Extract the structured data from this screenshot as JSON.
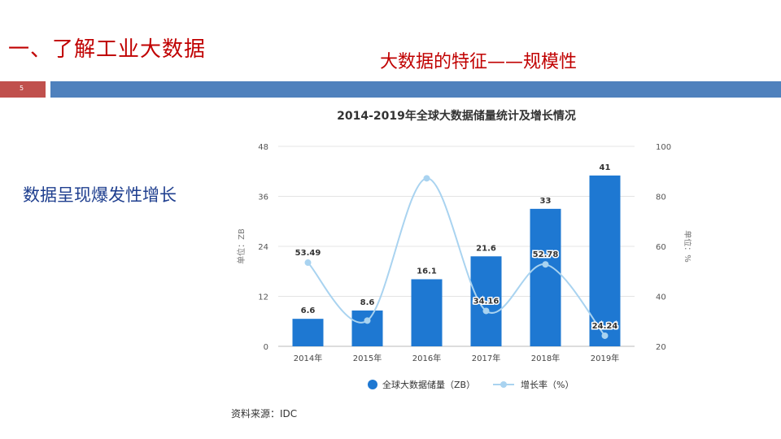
{
  "slide": {
    "title": "一、了解工业大数据",
    "subtitle": "大数据的特征——规模性",
    "page_number": "5",
    "side_text": "数据呈现爆发性增长",
    "source": "资料来源：IDC"
  },
  "colors": {
    "title_red": "#c00000",
    "accent_red": "#c0504d",
    "accent_blue": "#4f81bd",
    "bar_blue": "#1e78d2",
    "line_light_blue": "#a9d3f0",
    "side_text_blue": "#1f3f8f"
  },
  "chart_data": {
    "type": "bar",
    "title": "2014-2019年全球大数据储量统计及增长情况",
    "categories": [
      "2014年",
      "2015年",
      "2016年",
      "2017年",
      "2018年",
      "2019年"
    ],
    "series": [
      {
        "name": "全球大数据储量（ZB）",
        "type": "bar",
        "axis": "left",
        "values": [
          6.6,
          8.6,
          16.1,
          21.6,
          33,
          41
        ],
        "labels": [
          "6.6",
          "8.6",
          "16.1",
          "21.6",
          "33",
          "41"
        ]
      },
      {
        "name": "增长率（%）",
        "type": "line",
        "axis": "right",
        "values": [
          53.49,
          30.3,
          87.21,
          34.16,
          52.78,
          24.24
        ],
        "labels": [
          "53.49",
          "",
          "",
          "34.16",
          "52.78",
          "24.24"
        ]
      }
    ],
    "ylabel_left": "单位：ZB",
    "ylabel_right": "单位：%",
    "ylim_left": [
      0,
      48
    ],
    "yticks_left": [
      0,
      12,
      24,
      36,
      48
    ],
    "ylim_right": [
      20,
      100
    ],
    "yticks_right": [
      20,
      40,
      60,
      80,
      100
    ],
    "grid": true,
    "legend_position": "bottom"
  }
}
